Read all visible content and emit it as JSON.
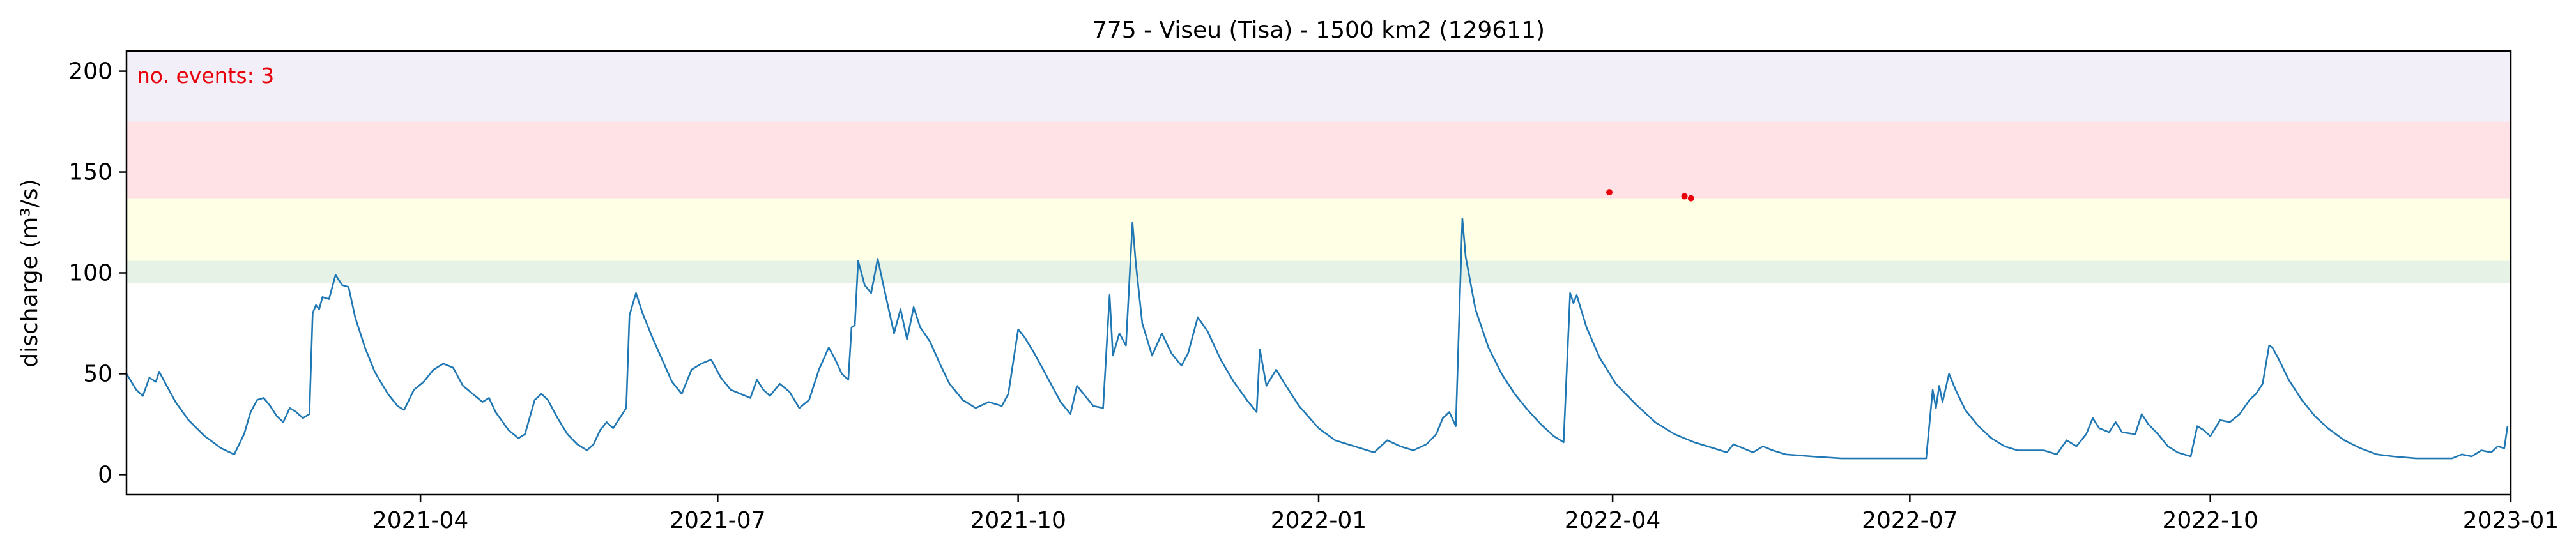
{
  "chart_data": {
    "type": "line",
    "title": "775 - Viseu (Tisa) - 1500 km2 (129611)",
    "xlabel": "",
    "ylabel": "discharge (m³/s)",
    "annotation": "no. events: 3",
    "xlim": [
      "2021-01-01",
      "2023-01-01"
    ],
    "ylim": [
      -10,
      210
    ],
    "x_ticks": [
      "2021-04-01",
      "2021-07-01",
      "2021-10-01",
      "2022-01-01",
      "2022-04-01",
      "2022-07-01",
      "2022-10-01",
      "2023-01-01"
    ],
    "x_tick_labels": [
      "2021-04",
      "2021-07",
      "2021-10",
      "2022-01",
      "2022-04",
      "2022-07",
      "2022-10",
      "2023-01"
    ],
    "y_ticks": [
      0,
      50,
      100,
      150,
      200
    ],
    "y_tick_labels": [
      "0",
      "50",
      "100",
      "150",
      "200"
    ],
    "grid": false,
    "threshold_bands": [
      {
        "from": 95,
        "to": 106,
        "color": "#e6f2e6"
      },
      {
        "from": 106,
        "to": 137,
        "color": "#ffffe5"
      },
      {
        "from": 137,
        "to": 175,
        "color": "#ffe2e5"
      },
      {
        "from": 175,
        "to": 210,
        "color": "#f2eff9"
      }
    ],
    "series": [
      {
        "color": "#1f77b4",
        "points": [
          [
            "2021-01-01",
            50
          ],
          [
            "2021-01-04",
            42
          ],
          [
            "2021-01-06",
            39
          ],
          [
            "2021-01-08",
            48
          ],
          [
            "2021-01-10",
            46
          ],
          [
            "2021-01-11",
            51
          ],
          [
            "2021-01-13",
            45
          ],
          [
            "2021-01-16",
            36
          ],
          [
            "2021-01-20",
            27
          ],
          [
            "2021-01-25",
            19
          ],
          [
            "2021-01-30",
            13
          ],
          [
            "2021-02-03",
            10
          ],
          [
            "2021-02-06",
            20
          ],
          [
            "2021-02-08",
            31
          ],
          [
            "2021-02-10",
            37
          ],
          [
            "2021-02-12",
            38
          ],
          [
            "2021-02-14",
            34
          ],
          [
            "2021-02-16",
            29
          ],
          [
            "2021-02-18",
            26
          ],
          [
            "2021-02-20",
            33
          ],
          [
            "2021-02-22",
            31
          ],
          [
            "2021-02-24",
            28
          ],
          [
            "2021-02-26",
            30
          ],
          [
            "2021-02-27",
            80
          ],
          [
            "2021-02-28",
            84
          ],
          [
            "2021-03-01",
            82
          ],
          [
            "2021-03-02",
            88
          ],
          [
            "2021-03-04",
            87
          ],
          [
            "2021-03-06",
            99
          ],
          [
            "2021-03-08",
            94
          ],
          [
            "2021-03-10",
            93
          ],
          [
            "2021-03-12",
            78
          ],
          [
            "2021-03-15",
            63
          ],
          [
            "2021-03-18",
            51
          ],
          [
            "2021-03-22",
            40
          ],
          [
            "2021-03-25",
            34
          ],
          [
            "2021-03-27",
            32
          ],
          [
            "2021-03-30",
            42
          ],
          [
            "2021-04-02",
            46
          ],
          [
            "2021-04-05",
            52
          ],
          [
            "2021-04-08",
            55
          ],
          [
            "2021-04-11",
            53
          ],
          [
            "2021-04-14",
            44
          ],
          [
            "2021-04-17",
            40
          ],
          [
            "2021-04-20",
            36
          ],
          [
            "2021-04-22",
            38
          ],
          [
            "2021-04-24",
            31
          ],
          [
            "2021-04-28",
            22
          ],
          [
            "2021-05-01",
            18
          ],
          [
            "2021-05-03",
            20
          ],
          [
            "2021-05-06",
            37
          ],
          [
            "2021-05-08",
            40
          ],
          [
            "2021-05-10",
            37
          ],
          [
            "2021-05-13",
            28
          ],
          [
            "2021-05-16",
            20
          ],
          [
            "2021-05-19",
            15
          ],
          [
            "2021-05-22",
            12
          ],
          [
            "2021-05-24",
            15
          ],
          [
            "2021-05-26",
            22
          ],
          [
            "2021-05-28",
            26
          ],
          [
            "2021-05-30",
            23
          ],
          [
            "2021-06-01",
            28
          ],
          [
            "2021-06-03",
            33
          ],
          [
            "2021-06-04",
            79
          ],
          [
            "2021-06-06",
            90
          ],
          [
            "2021-06-08",
            80
          ],
          [
            "2021-06-11",
            68
          ],
          [
            "2021-06-14",
            57
          ],
          [
            "2021-06-17",
            46
          ],
          [
            "2021-06-20",
            40
          ],
          [
            "2021-06-23",
            52
          ],
          [
            "2021-06-26",
            55
          ],
          [
            "2021-06-29",
            57
          ],
          [
            "2021-07-02",
            48
          ],
          [
            "2021-07-05",
            42
          ],
          [
            "2021-07-08",
            40
          ],
          [
            "2021-07-11",
            38
          ],
          [
            "2021-07-13",
            47
          ],
          [
            "2021-07-15",
            42
          ],
          [
            "2021-07-17",
            39
          ],
          [
            "2021-07-20",
            45
          ],
          [
            "2021-07-23",
            41
          ],
          [
            "2021-07-26",
            33
          ],
          [
            "2021-07-29",
            37
          ],
          [
            "2021-08-01",
            52
          ],
          [
            "2021-08-04",
            63
          ],
          [
            "2021-08-06",
            57
          ],
          [
            "2021-08-08",
            50
          ],
          [
            "2021-08-10",
            47
          ],
          [
            "2021-08-11",
            73
          ],
          [
            "2021-08-12",
            74
          ],
          [
            "2021-08-13",
            106
          ],
          [
            "2021-08-15",
            94
          ],
          [
            "2021-08-17",
            90
          ],
          [
            "2021-08-19",
            107
          ],
          [
            "2021-08-21",
            92
          ],
          [
            "2021-08-24",
            70
          ],
          [
            "2021-08-26",
            82
          ],
          [
            "2021-08-28",
            67
          ],
          [
            "2021-08-30",
            83
          ],
          [
            "2021-09-01",
            73
          ],
          [
            "2021-09-04",
            66
          ],
          [
            "2021-09-07",
            55
          ],
          [
            "2021-09-10",
            45
          ],
          [
            "2021-09-14",
            37
          ],
          [
            "2021-09-18",
            33
          ],
          [
            "2021-09-22",
            36
          ],
          [
            "2021-09-26",
            34
          ],
          [
            "2021-09-28",
            40
          ],
          [
            "2021-10-01",
            72
          ],
          [
            "2021-10-03",
            68
          ],
          [
            "2021-10-06",
            60
          ],
          [
            "2021-10-10",
            48
          ],
          [
            "2021-10-14",
            36
          ],
          [
            "2021-10-17",
            30
          ],
          [
            "2021-10-19",
            44
          ],
          [
            "2021-10-21",
            40
          ],
          [
            "2021-10-24",
            34
          ],
          [
            "2021-10-27",
            33
          ],
          [
            "2021-10-29",
            89
          ],
          [
            "2021-10-30",
            59
          ],
          [
            "2021-11-01",
            70
          ],
          [
            "2021-11-03",
            64
          ],
          [
            "2021-11-05",
            125
          ],
          [
            "2021-11-06",
            105
          ],
          [
            "2021-11-08",
            75
          ],
          [
            "2021-11-11",
            59
          ],
          [
            "2021-11-14",
            70
          ],
          [
            "2021-11-17",
            60
          ],
          [
            "2021-11-20",
            54
          ],
          [
            "2021-11-22",
            60
          ],
          [
            "2021-11-25",
            78
          ],
          [
            "2021-11-28",
            71
          ],
          [
            "2021-12-02",
            57
          ],
          [
            "2021-12-06",
            46
          ],
          [
            "2021-12-10",
            37
          ],
          [
            "2021-12-13",
            31
          ],
          [
            "2021-12-14",
            62
          ],
          [
            "2021-12-16",
            44
          ],
          [
            "2021-12-19",
            52
          ],
          [
            "2021-12-22",
            44
          ],
          [
            "2021-12-26",
            34
          ],
          [
            "2022-01-01",
            23
          ],
          [
            "2022-01-06",
            17
          ],
          [
            "2022-01-12",
            14
          ],
          [
            "2022-01-18",
            11
          ],
          [
            "2022-01-22",
            17
          ],
          [
            "2022-01-26",
            14
          ],
          [
            "2022-01-30",
            12
          ],
          [
            "2022-02-03",
            15
          ],
          [
            "2022-02-06",
            20
          ],
          [
            "2022-02-08",
            28
          ],
          [
            "2022-02-10",
            31
          ],
          [
            "2022-02-12",
            24
          ],
          [
            "2022-02-14",
            127
          ],
          [
            "2022-02-15",
            108
          ],
          [
            "2022-02-18",
            82
          ],
          [
            "2022-02-22",
            63
          ],
          [
            "2022-02-26",
            50
          ],
          [
            "2022-03-02",
            40
          ],
          [
            "2022-03-06",
            32
          ],
          [
            "2022-03-10",
            25
          ],
          [
            "2022-03-14",
            19
          ],
          [
            "2022-03-17",
            16
          ],
          [
            "2022-03-19",
            90
          ],
          [
            "2022-03-20",
            85
          ],
          [
            "2022-03-21",
            89
          ],
          [
            "2022-03-24",
            73
          ],
          [
            "2022-03-28",
            58
          ],
          [
            "2022-04-02",
            45
          ],
          [
            "2022-04-08",
            35
          ],
          [
            "2022-04-14",
            26
          ],
          [
            "2022-04-20",
            20
          ],
          [
            "2022-04-26",
            16
          ],
          [
            "2022-05-02",
            13
          ],
          [
            "2022-05-06",
            11
          ],
          [
            "2022-05-08",
            15
          ],
          [
            "2022-05-11",
            13
          ],
          [
            "2022-05-14",
            11
          ],
          [
            "2022-05-17",
            14
          ],
          [
            "2022-05-20",
            12
          ],
          [
            "2022-05-24",
            10
          ],
          [
            "2022-06-01",
            9
          ],
          [
            "2022-06-10",
            8
          ],
          [
            "2022-06-20",
            8
          ],
          [
            "2022-06-30",
            8
          ],
          [
            "2022-07-06",
            8
          ],
          [
            "2022-07-08",
            42
          ],
          [
            "2022-07-09",
            33
          ],
          [
            "2022-07-10",
            44
          ],
          [
            "2022-07-11",
            36
          ],
          [
            "2022-07-13",
            50
          ],
          [
            "2022-07-15",
            42
          ],
          [
            "2022-07-18",
            32
          ],
          [
            "2022-07-22",
            24
          ],
          [
            "2022-07-26",
            18
          ],
          [
            "2022-07-30",
            14
          ],
          [
            "2022-08-03",
            12
          ],
          [
            "2022-08-07",
            12
          ],
          [
            "2022-08-11",
            12
          ],
          [
            "2022-08-15",
            10
          ],
          [
            "2022-08-18",
            17
          ],
          [
            "2022-08-21",
            14
          ],
          [
            "2022-08-24",
            20
          ],
          [
            "2022-08-26",
            28
          ],
          [
            "2022-08-28",
            23
          ],
          [
            "2022-08-31",
            21
          ],
          [
            "2022-09-02",
            26
          ],
          [
            "2022-09-04",
            21
          ],
          [
            "2022-09-08",
            20
          ],
          [
            "2022-09-10",
            30
          ],
          [
            "2022-09-12",
            25
          ],
          [
            "2022-09-15",
            20
          ],
          [
            "2022-09-18",
            14
          ],
          [
            "2022-09-21",
            11
          ],
          [
            "2022-09-25",
            9
          ],
          [
            "2022-09-27",
            24
          ],
          [
            "2022-09-29",
            22
          ],
          [
            "2022-10-01",
            19
          ],
          [
            "2022-10-04",
            27
          ],
          [
            "2022-10-07",
            26
          ],
          [
            "2022-10-10",
            30
          ],
          [
            "2022-10-13",
            37
          ],
          [
            "2022-10-15",
            40
          ],
          [
            "2022-10-17",
            45
          ],
          [
            "2022-10-19",
            64
          ],
          [
            "2022-10-20",
            63
          ],
          [
            "2022-10-22",
            57
          ],
          [
            "2022-10-25",
            47
          ],
          [
            "2022-10-29",
            37
          ],
          [
            "2022-11-02",
            29
          ],
          [
            "2022-11-06",
            23
          ],
          [
            "2022-11-11",
            17
          ],
          [
            "2022-11-16",
            13
          ],
          [
            "2022-11-21",
            10
          ],
          [
            "2022-11-26",
            9
          ],
          [
            "2022-12-03",
            8
          ],
          [
            "2022-12-10",
            8
          ],
          [
            "2022-12-14",
            8
          ],
          [
            "2022-12-17",
            10
          ],
          [
            "2022-12-20",
            9
          ],
          [
            "2022-12-23",
            12
          ],
          [
            "2022-12-26",
            11
          ],
          [
            "2022-12-28",
            14
          ],
          [
            "2022-12-30",
            13
          ],
          [
            "2022-12-31",
            24
          ]
        ]
      }
    ],
    "event_markers": {
      "color": "#e8000b",
      "points": [
        [
          "2022-03-31",
          140
        ],
        [
          "2022-04-23",
          138
        ],
        [
          "2022-04-25",
          137
        ]
      ]
    }
  }
}
